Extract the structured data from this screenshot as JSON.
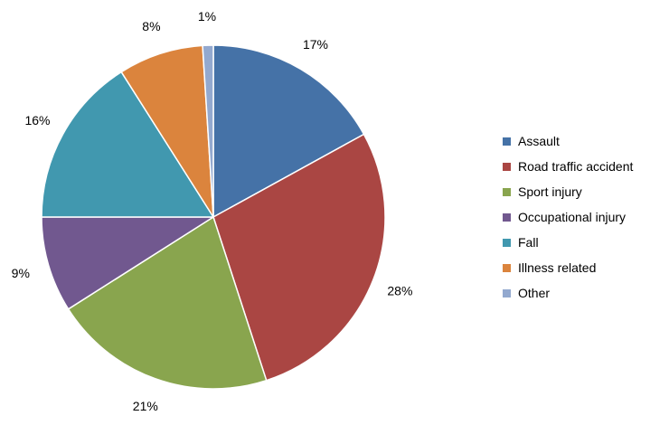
{
  "chart_data": {
    "type": "pie",
    "start_angle_deg": 0,
    "direction": "clockwise",
    "legend_position": "right",
    "slices": [
      {
        "label": "Assault",
        "value": 17,
        "value_label": "17%",
        "color": "#4572A7"
      },
      {
        "label": "Road traffic accident",
        "value": 28,
        "value_label": "28%",
        "color": "#AA4643"
      },
      {
        "label": "Sport injury",
        "value": 21,
        "value_label": "21%",
        "color": "#89A54E"
      },
      {
        "label": "Occupational injury",
        "value": 9,
        "value_label": "9%",
        "color": "#71588F"
      },
      {
        "label": "Fall",
        "value": 16,
        "value_label": "16%",
        "color": "#4198AF"
      },
      {
        "label": "Illness related",
        "value": 8,
        "value_label": "8%",
        "color": "#DB843D"
      },
      {
        "label": "Other",
        "value": 1,
        "value_label": "1%",
        "color": "#93A9CF"
      }
    ]
  }
}
